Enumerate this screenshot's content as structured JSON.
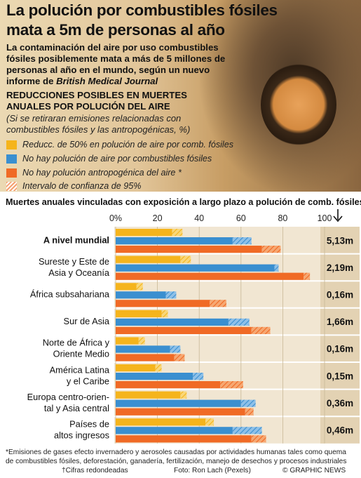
{
  "header": {
    "title_line1": "La polución por combustibles fósiles",
    "title_line2": "mata a 5m de personas al año",
    "intro_lines": [
      "La contaminación del aire por uso combustibles",
      "fósiles posiblemente mata a más de 5 millones de",
      "personas al año en el mundo, según un nuevo"
    ],
    "intro_last_prefix": "informe de ",
    "intro_last_journal": "British Medical Journal"
  },
  "section": {
    "heading_line1": "REDUCCIONES POSIBLES EN MUERTES",
    "heading_line2": "ANUALES POR POLUCIÓN DEL AIRE",
    "note_line1": "(Si se retiraran emisiones relacionadas con",
    "note_line2": "combustibles fósiles y las antropogénicas, %)"
  },
  "legend": [
    {
      "label": "Reducc. de 50% en polución de aire por comb. fósiles",
      "color": "#f5b41c"
    },
    {
      "label": "No hay polución de aire por combustibles fósiles",
      "color": "#3a8fd0"
    },
    {
      "label": "No hay polución antropogénica del aire *",
      "color": "#f06a25"
    },
    {
      "label": "Intervalo de confianza de 95%",
      "color": "#f5a070"
    }
  ],
  "chart_heading": "Muertes anuales vinculadas con exposición a largo plazo a polución de comb. fósiles",
  "chart_heading_mark": "†",
  "chart_data": {
    "type": "bar",
    "orientation": "horizontal",
    "xlim": [
      0,
      100
    ],
    "xticks": [
      0,
      20,
      40,
      60,
      80,
      100
    ],
    "tick_suffix": "%",
    "categories": [
      [
        "A nivel mundial"
      ],
      [
        "Sureste y Este de",
        "Asia y Oceanía"
      ],
      [
        "África subsahariana"
      ],
      [
        "Sur de Asia"
      ],
      [
        "Norte de África y",
        "Oriente Medio"
      ],
      [
        "América Latina",
        "y el Caribe"
      ],
      [
        "Europa centro-orien-",
        "tal y Asia central"
      ],
      [
        "Países de",
        "altos ingresos"
      ]
    ],
    "series": [
      {
        "name": "Reducc. de 50% en polución de aire por comb. fósiles",
        "color": "#f5b41c",
        "ci_color": "#f9d77a",
        "values": [
          27,
          31,
          10,
          22,
          11,
          19,
          31,
          43
        ],
        "ci_upper": [
          32,
          36,
          13,
          25,
          14,
          22,
          34,
          47
        ]
      },
      {
        "name": "No hay polución de aire por combustibles fósiles",
        "color": "#3a8fd0",
        "ci_color": "#8ec0e8",
        "values": [
          56,
          76,
          24,
          54,
          26,
          37,
          60,
          56
        ],
        "ci_upper": [
          65,
          78,
          29,
          64,
          31,
          42,
          67,
          70
        ]
      },
      {
        "name": "No hay polución antropogénica del aire *",
        "color": "#f06a25",
        "ci_color": "#f6a872",
        "values": [
          70,
          90,
          45,
          65,
          28,
          50,
          62,
          65
        ],
        "ci_upper": [
          79,
          93,
          53,
          74,
          33,
          61,
          66,
          72
        ]
      }
    ],
    "deaths": [
      "5,13m",
      "2,19m",
      "0,16m",
      "1,66m",
      "0,16m",
      "0,15m",
      "0,36m",
      "0,46m"
    ]
  },
  "footer": {
    "note1": "*Emisiones de gases efecto invernadero y aerosoles causadas por actividades humanas tales como quema",
    "note2": "de combustibles fósiles, deforestación, ganadería, fertilización, manejo de desechos y procesos industriales",
    "rounded": "†Cifras redondeadas",
    "photo": "Foto: Ron Lach (Pexels)",
    "credit": "© GRAPHIC NEWS"
  }
}
